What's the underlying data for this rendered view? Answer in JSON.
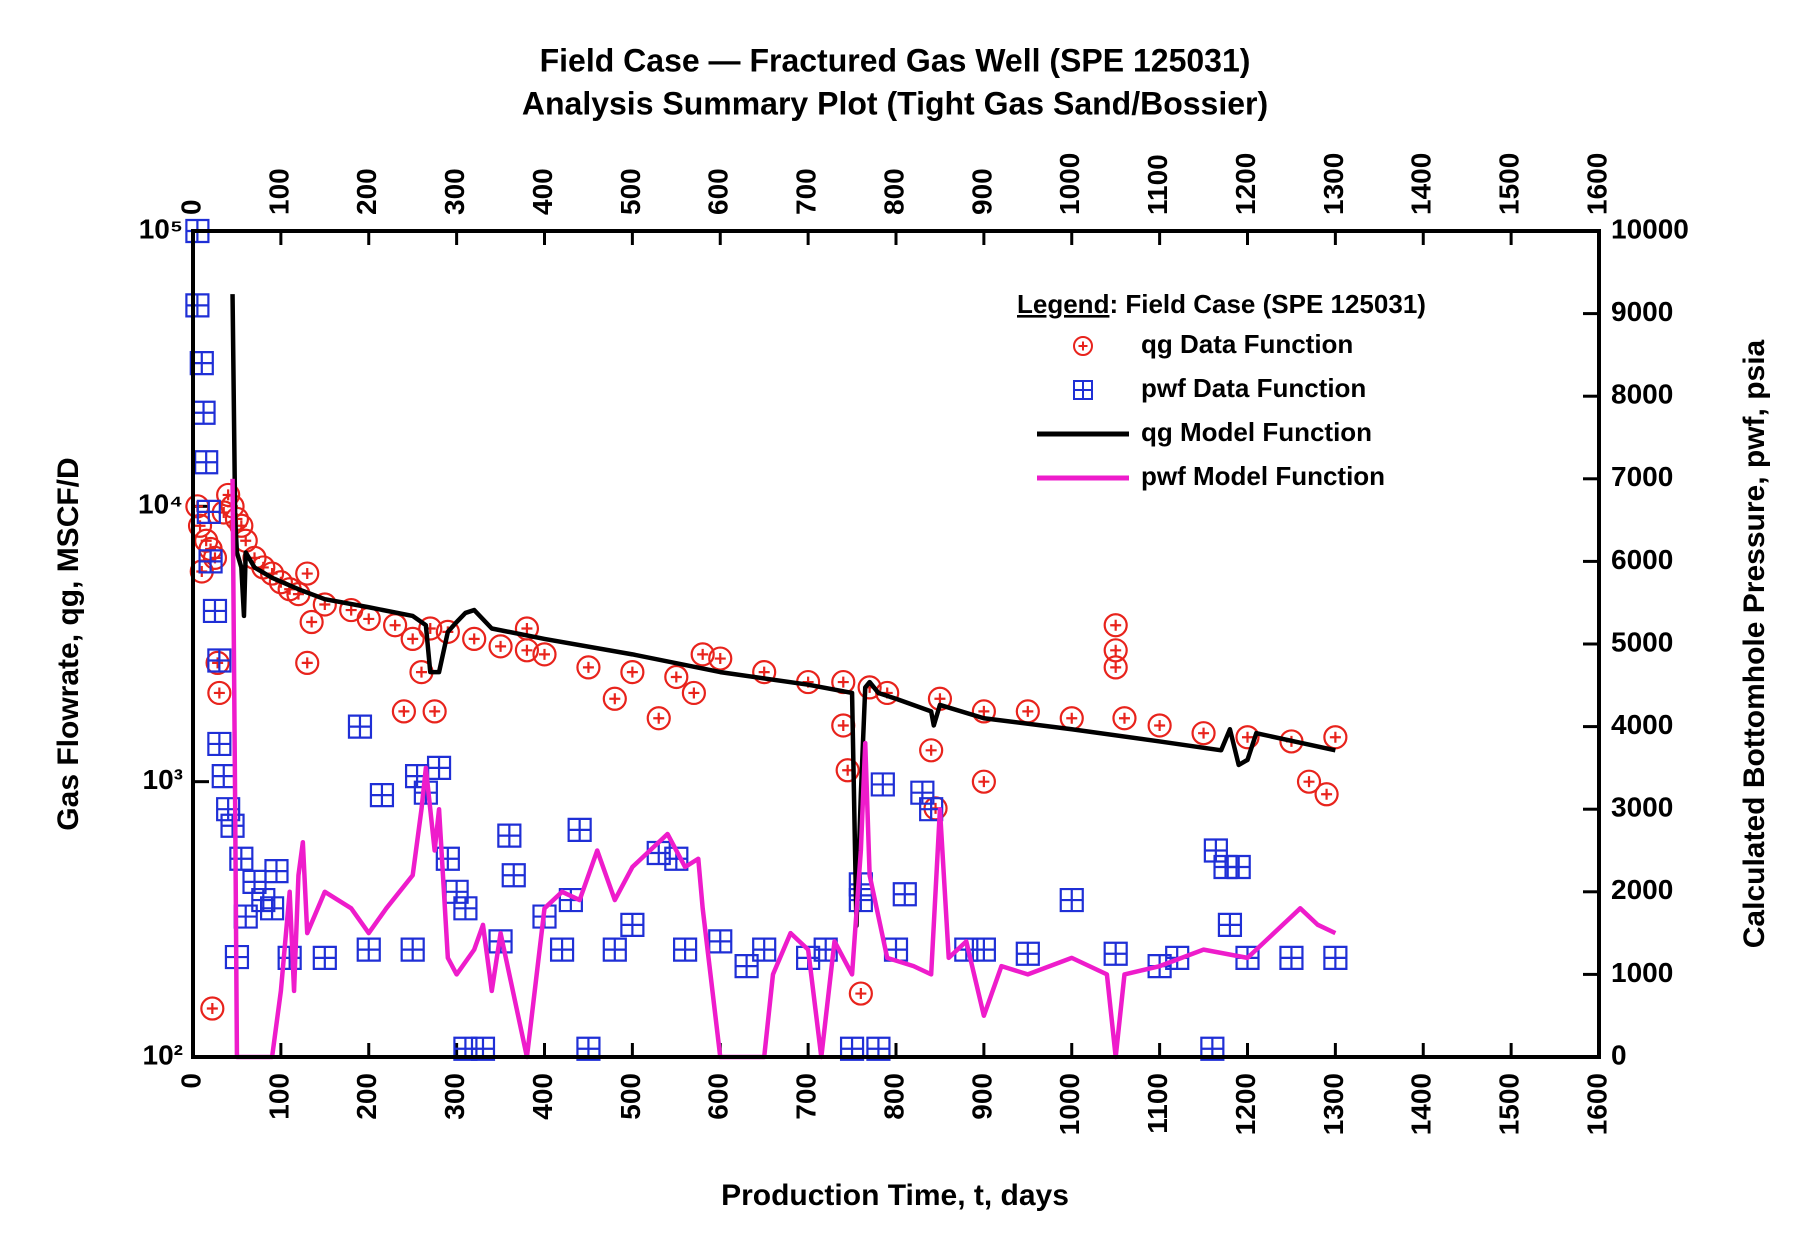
{
  "chart_data": {
    "type": "combo",
    "title": "Field Case — Fractured Gas Well (SPE 125031)",
    "subtitle": "Analysis Summary Plot (Tight Gas Sand/Bossier)",
    "x_label": "Production Time, t, days",
    "y_label": "Gas Flowrate, qg, MSCF/D",
    "y2_label": "Calculated Bottomhole Pressure, pwf, psia",
    "legend_label": "Legend",
    "legend_text": ": Field Case (SPE 125031)",
    "legend_loc": "upper right",
    "xlim": [
      0,
      1600
    ],
    "xticks": [
      0,
      100,
      200,
      300,
      400,
      500,
      600,
      700,
      800,
      900,
      1000,
      1100,
      1200,
      1300,
      1400,
      1500,
      1600
    ],
    "ylim": [
      100,
      100000
    ],
    "ylog": true,
    "yticks": [
      {
        "value": 100,
        "label": "10²"
      },
      {
        "value": 1000,
        "label": "10³"
      },
      {
        "value": 10000,
        "label": "10⁴"
      },
      {
        "value": 100000,
        "label": "10⁵"
      }
    ],
    "y2lim": [
      0,
      10000
    ],
    "y2ticks": [
      0,
      1000,
      2000,
      3000,
      4000,
      5000,
      6000,
      7000,
      8000,
      9000,
      10000
    ],
    "series": [
      {
        "name": "qg Data Function",
        "type": "scatter",
        "marker": "circle-plus",
        "color": "#e8231c",
        "x": [
          5,
          8,
          10,
          15,
          20,
          22,
          25,
          28,
          30,
          35,
          40,
          45,
          50,
          55,
          60,
          70,
          80,
          90,
          100,
          110,
          120,
          130,
          130,
          135,
          150,
          180,
          200,
          230,
          240,
          250,
          260,
          270,
          275,
          290,
          320,
          350,
          380,
          380,
          400,
          450,
          480,
          500,
          530,
          550,
          570,
          580,
          600,
          650,
          700,
          740,
          740,
          745,
          760,
          770,
          790,
          840,
          845,
          850,
          900,
          900,
          950,
          1000,
          1050,
          1050,
          1050,
          1060,
          1100,
          1150,
          1200,
          1250,
          1270,
          1290,
          1300
        ],
        "values": [
          10000,
          8500,
          5800,
          7500,
          7000,
          150,
          6500,
          2700,
          2100,
          9500,
          11000,
          10000,
          9000,
          8500,
          7500,
          6500,
          6000,
          5700,
          5300,
          5000,
          4800,
          5700,
          2700,
          3800,
          4400,
          4200,
          3900,
          3700,
          1800,
          3300,
          2500,
          3600,
          1800,
          3500,
          3300,
          3100,
          3600,
          3000,
          2900,
          2600,
          2000,
          2500,
          1700,
          2400,
          2100,
          2900,
          2800,
          2500,
          2300,
          2300,
          1600,
          1100,
          170,
          2200,
          2100,
          1300,
          800,
          2000,
          1000,
          1800,
          1800,
          1700,
          3700,
          3000,
          2600,
          1700,
          1600,
          1500,
          1450,
          1400,
          1000,
          900,
          1450
        ]
      },
      {
        "name": "pwf Data Function",
        "type": "scatter",
        "marker": "square-plus",
        "color": "#1f2fd6",
        "axis": "y2",
        "x": [
          5,
          5,
          10,
          12,
          15,
          18,
          20,
          25,
          30,
          30,
          35,
          40,
          45,
          50,
          55,
          60,
          70,
          80,
          90,
          95,
          110,
          150,
          190,
          200,
          215,
          250,
          255,
          265,
          280,
          290,
          300,
          310,
          310,
          330,
          350,
          360,
          365,
          400,
          420,
          430,
          440,
          450,
          480,
          500,
          530,
          550,
          560,
          600,
          630,
          650,
          700,
          720,
          750,
          760,
          760,
          780,
          785,
          800,
          810,
          830,
          840,
          880,
          900,
          950,
          1000,
          1050,
          1100,
          1120,
          1160,
          1164,
          1175,
          1180,
          1190,
          1200,
          1250,
          1300
        ],
        "values": [
          10000,
          9100,
          8400,
          7800,
          7200,
          6600,
          6000,
          5400,
          4800,
          3790,
          3400,
          3000,
          2800,
          1210,
          2400,
          1700,
          2120,
          1900,
          1800,
          2250,
          1200,
          1200,
          4000,
          1300,
          3170,
          1300,
          3400,
          3200,
          3500,
          2400,
          2000,
          1800,
          100,
          100,
          1400,
          2680,
          2200,
          1700,
          1300,
          1900,
          2750,
          100,
          1300,
          1600,
          2470,
          2400,
          1300,
          1400,
          1100,
          1300,
          1200,
          1300,
          100,
          2090,
          1900,
          100,
          3300,
          1300,
          1970,
          3200,
          3000,
          1300,
          1300,
          1250,
          1900,
          1250,
          1100,
          1200,
          100,
          2500,
          2300,
          1600,
          2300,
          1200,
          1200,
          1200
        ]
      },
      {
        "name": "qg Model Function",
        "type": "line",
        "color": "#000000",
        "x": [
          45,
          48,
          50,
          55,
          58,
          60,
          70,
          90,
          120,
          150,
          200,
          250,
          265,
          270,
          280,
          290,
          300,
          310,
          320,
          340,
          400,
          500,
          600,
          700,
          750,
          755,
          760,
          765,
          770,
          780,
          800,
          840,
          843,
          850,
          900,
          1000,
          1100,
          1170,
          1180,
          1190,
          1200,
          1210,
          1300
        ],
        "values": [
          59000,
          9000,
          6800,
          6000,
          4000,
          6800,
          6000,
          5500,
          5000,
          4600,
          4300,
          4000,
          3700,
          2500,
          2500,
          3500,
          3800,
          4100,
          4200,
          3600,
          3300,
          2900,
          2500,
          2250,
          2100,
          300,
          900,
          2200,
          2300,
          2100,
          2000,
          1800,
          1600,
          1900,
          1700,
          1550,
          1400,
          1300,
          1550,
          1150,
          1200,
          1500,
          1300
        ]
      },
      {
        "name": "pwf Model Function",
        "type": "line",
        "color": "#ee1ccb",
        "axis": "y2",
        "x": [
          45,
          48,
          50,
          90,
          100,
          110,
          115,
          120,
          125,
          130,
          150,
          180,
          200,
          220,
          250,
          260,
          265,
          275,
          280,
          290,
          300,
          320,
          330,
          340,
          350,
          380,
          400,
          420,
          440,
          460,
          480,
          500,
          520,
          540,
          560,
          575,
          580,
          600,
          650,
          660,
          680,
          700,
          715,
          730,
          750,
          760,
          765,
          770,
          790,
          820,
          840,
          850,
          860,
          880,
          900,
          920,
          950,
          1000,
          1040,
          1050,
          1060,
          1100,
          1150,
          1200,
          1250,
          1260,
          1280,
          1300
        ],
        "values": [
          7000,
          3000,
          0,
          0,
          800,
          2000,
          800,
          2200,
          2600,
          1500,
          2000,
          1800,
          1500,
          1800,
          2200,
          3000,
          3500,
          2500,
          3000,
          1200,
          1000,
          1300,
          1600,
          800,
          1500,
          0,
          1800,
          2000,
          1900,
          2500,
          1900,
          2300,
          2500,
          2700,
          2300,
          2400,
          1800,
          0,
          0,
          1000,
          1500,
          1300,
          0,
          1400,
          1000,
          2500,
          3800,
          2200,
          1200,
          1100,
          1000,
          3000,
          1200,
          1400,
          500,
          1100,
          1000,
          1200,
          1000,
          0,
          1000,
          1100,
          1300,
          1200,
          1700,
          1800,
          1600,
          1500
        ]
      }
    ]
  }
}
